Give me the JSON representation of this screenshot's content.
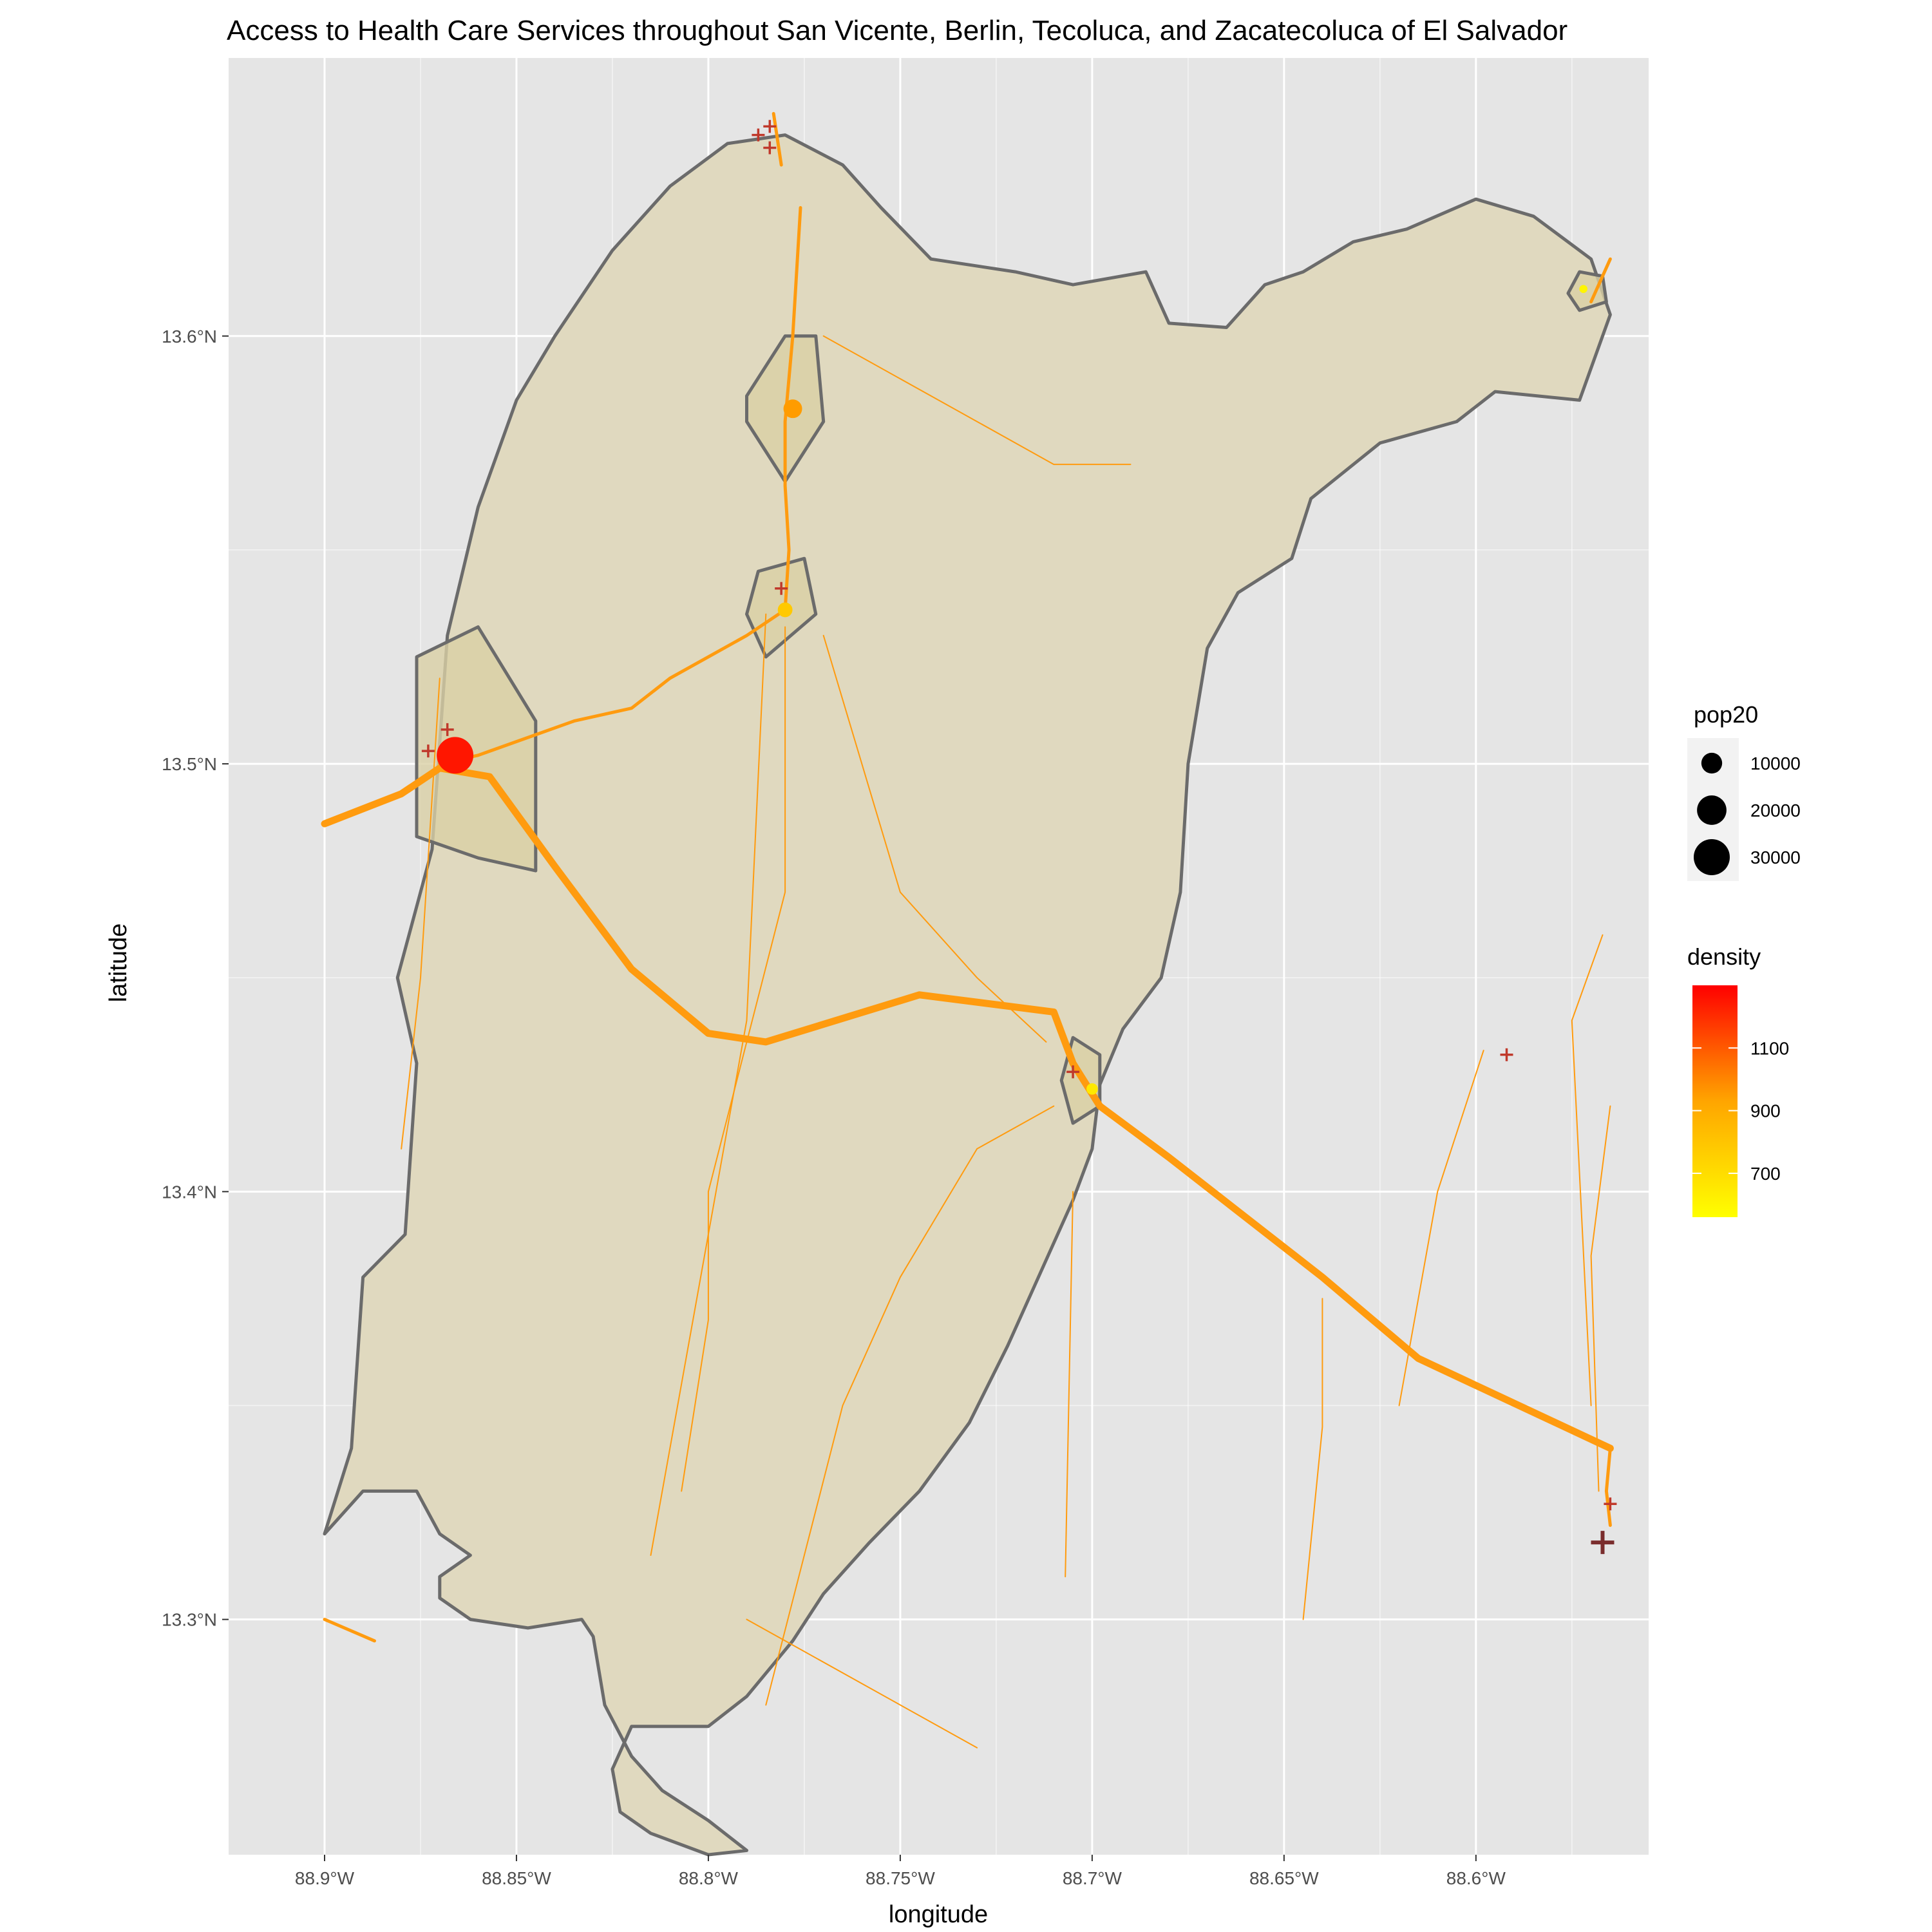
{
  "title": "Access to Health Care Services throughout San Vicente, Berlin, Tecoluca, and Zacatecoluca of El Salvador",
  "x_axis": {
    "title": "longitude",
    "ticks": [
      {
        "value": -88.9,
        "label": "88.9°W"
      },
      {
        "value": -88.85,
        "label": "88.85°W"
      },
      {
        "value": -88.8,
        "label": "88.8°W"
      },
      {
        "value": -88.75,
        "label": "88.75°W"
      },
      {
        "value": -88.7,
        "label": "88.7°W"
      },
      {
        "value": -88.65,
        "label": "88.65°W"
      },
      {
        "value": -88.6,
        "label": "88.6°W"
      }
    ]
  },
  "y_axis": {
    "title": "latitude",
    "ticks": [
      {
        "value": 13.3,
        "label": "13.3°N"
      },
      {
        "value": 13.4,
        "label": "13.4°N"
      },
      {
        "value": 13.5,
        "label": "13.5°N"
      },
      {
        "value": 13.6,
        "label": "13.6°N"
      }
    ]
  },
  "legend_size": {
    "title": "pop20",
    "items": [
      {
        "value": 10000,
        "label": "10000"
      },
      {
        "value": 20000,
        "label": "20000"
      },
      {
        "value": 30000,
        "label": "30000"
      }
    ]
  },
  "legend_color": {
    "title": "density",
    "labels": [
      {
        "value": 1100,
        "label": "1100"
      },
      {
        "value": 900,
        "label": "900"
      },
      {
        "value": 700,
        "label": "700"
      }
    ],
    "low_color": "#ffff00",
    "high_color": "#ff0000"
  },
  "colors": {
    "panel": "#e5e5e5",
    "grid": "#ffffff",
    "region_fill": "#e0d9bf",
    "urban_fill": "#d9cfa5",
    "region_stroke": "#6b6b6b",
    "road": "#ff9b0f",
    "health_facility": "#c0392b"
  },
  "chart_data": {
    "type": "map",
    "xlim": [
      -88.925,
      -88.555
    ],
    "ylim": [
      13.245,
      13.665
    ],
    "grid": true,
    "region_boundary": [
      [
        -88.9,
        13.32
      ],
      [
        -88.893,
        13.34
      ],
      [
        -88.89,
        13.38
      ],
      [
        -88.879,
        13.39
      ],
      [
        -88.876,
        13.43
      ],
      [
        -88.881,
        13.45
      ],
      [
        -88.872,
        13.48
      ],
      [
        -88.868,
        13.53
      ],
      [
        -88.86,
        13.56
      ],
      [
        -88.85,
        13.585
      ],
      [
        -88.84,
        13.6
      ],
      [
        -88.825,
        13.62
      ],
      [
        -88.81,
        13.635
      ],
      [
        -88.795,
        13.645
      ],
      [
        -88.78,
        13.647
      ],
      [
        -88.765,
        13.64
      ],
      [
        -88.755,
        13.63
      ],
      [
        -88.742,
        13.618
      ],
      [
        -88.72,
        13.615
      ],
      [
        -88.705,
        13.612
      ],
      [
        -88.686,
        13.615
      ],
      [
        -88.68,
        13.603
      ],
      [
        -88.665,
        13.602
      ],
      [
        -88.655,
        13.612
      ],
      [
        -88.645,
        13.615
      ],
      [
        -88.632,
        13.622
      ],
      [
        -88.618,
        13.625
      ],
      [
        -88.6,
        13.632
      ],
      [
        -88.585,
        13.628
      ],
      [
        -88.57,
        13.618
      ],
      [
        -88.565,
        13.605
      ],
      [
        -88.573,
        13.585
      ],
      [
        -88.595,
        13.587
      ],
      [
        -88.605,
        13.58
      ],
      [
        -88.625,
        13.575
      ],
      [
        -88.643,
        13.562
      ],
      [
        -88.648,
        13.548
      ],
      [
        -88.662,
        13.54
      ],
      [
        -88.67,
        13.527
      ],
      [
        -88.675,
        13.5
      ],
      [
        -88.677,
        13.47
      ],
      [
        -88.682,
        13.45
      ],
      [
        -88.692,
        13.438
      ],
      [
        -88.698,
        13.425
      ],
      [
        -88.7,
        13.41
      ],
      [
        -88.705,
        13.398
      ],
      [
        -88.715,
        13.378
      ],
      [
        -88.722,
        13.364
      ],
      [
        -88.732,
        13.346
      ],
      [
        -88.745,
        13.33
      ],
      [
        -88.758,
        13.318
      ],
      [
        -88.77,
        13.306
      ],
      [
        -88.778,
        13.295
      ],
      [
        -88.79,
        13.282
      ],
      [
        -88.8,
        13.275
      ],
      [
        -88.82,
        13.275
      ],
      [
        -88.825,
        13.265
      ],
      [
        -88.823,
        13.255
      ],
      [
        -88.815,
        13.25
      ],
      [
        -88.8,
        13.245
      ],
      [
        -88.79,
        13.246
      ],
      [
        -88.8,
        13.253
      ],
      [
        -88.812,
        13.26
      ],
      [
        -88.82,
        13.268
      ],
      [
        -88.827,
        13.28
      ],
      [
        -88.83,
        13.296
      ],
      [
        -88.833,
        13.3
      ],
      [
        -88.847,
        13.298
      ],
      [
        -88.862,
        13.3
      ],
      [
        -88.87,
        13.305
      ],
      [
        -88.87,
        13.31
      ],
      [
        -88.862,
        13.315
      ],
      [
        -88.87,
        13.32
      ],
      [
        -88.876,
        13.33
      ],
      [
        -88.89,
        13.33
      ],
      [
        -88.9,
        13.32
      ]
    ],
    "urban_areas": [
      {
        "name": "",
        "points": [
          [
            -88.876,
            13.525
          ],
          [
            -88.86,
            13.532
          ],
          [
            -88.845,
            13.51
          ],
          [
            -88.845,
            13.475
          ],
          [
            -88.86,
            13.478
          ],
          [
            -88.876,
            13.483
          ]
        ]
      },
      {
        "name": "",
        "points": [
          [
            -88.79,
            13.586
          ],
          [
            -88.78,
            13.6
          ],
          [
            -88.772,
            13.6
          ],
          [
            -88.77,
            13.58
          ],
          [
            -88.78,
            13.566
          ],
          [
            -88.79,
            13.58
          ]
        ]
      },
      {
        "name": "",
        "points": [
          [
            -88.787,
            13.545
          ],
          [
            -88.775,
            13.548
          ],
          [
            -88.772,
            13.535
          ],
          [
            -88.785,
            13.525
          ],
          [
            -88.79,
            13.535
          ]
        ]
      },
      {
        "name": "",
        "points": [
          [
            -88.705,
            13.436
          ],
          [
            -88.698,
            13.432
          ],
          [
            -88.698,
            13.42
          ],
          [
            -88.705,
            13.416
          ],
          [
            -88.708,
            13.426
          ]
        ]
      },
      {
        "name": "",
        "points": [
          [
            -88.573,
            13.615
          ],
          [
            -88.567,
            13.614
          ],
          [
            -88.566,
            13.608
          ],
          [
            -88.573,
            13.606
          ],
          [
            -88.576,
            13.61
          ]
        ]
      }
    ],
    "main_roads": [
      [
        [
          -88.9,
          13.486
        ],
        [
          -88.88,
          13.493
        ],
        [
          -88.87,
          13.499
        ],
        [
          -88.857,
          13.497
        ],
        [
          -88.84,
          13.476
        ],
        [
          -88.82,
          13.452
        ],
        [
          -88.8,
          13.437
        ],
        [
          -88.785,
          13.435
        ],
        [
          -88.745,
          13.446
        ],
        [
          -88.71,
          13.442
        ],
        [
          -88.705,
          13.43
        ],
        [
          -88.698,
          13.42
        ],
        [
          -88.68,
          13.408
        ],
        [
          -88.64,
          13.38
        ],
        [
          -88.615,
          13.361
        ],
        [
          -88.565,
          13.34
        ]
      ]
    ],
    "secondary_roads": [
      [
        [
          -88.87,
          13.5
        ],
        [
          -88.86,
          13.502
        ],
        [
          -88.835,
          13.51
        ],
        [
          -88.82,
          13.513
        ],
        [
          -88.81,
          13.52
        ],
        [
          -88.79,
          13.53
        ],
        [
          -88.78,
          13.536
        ],
        [
          -88.779,
          13.55
        ],
        [
          -88.78,
          13.565
        ],
        [
          -88.78,
          13.58
        ],
        [
          -88.778,
          13.6
        ],
        [
          -88.776,
          13.63
        ]
      ],
      [
        [
          -88.781,
          13.64
        ],
        [
          -88.783,
          13.652
        ]
      ],
      [
        [
          -88.565,
          13.34
        ],
        [
          -88.566,
          13.33
        ],
        [
          -88.565,
          13.322
        ]
      ],
      [
        [
          -88.57,
          13.608
        ],
        [
          -88.565,
          13.618
        ]
      ],
      [
        [
          -88.9,
          13.3
        ],
        [
          -88.887,
          13.295
        ]
      ]
    ],
    "minor_roads": [
      [
        [
          -88.88,
          13.41
        ],
        [
          -88.875,
          13.45
        ],
        [
          -88.87,
          13.52
        ]
      ],
      [
        [
          -88.785,
          13.535
        ],
        [
          -88.79,
          13.44
        ],
        [
          -88.815,
          13.315
        ]
      ],
      [
        [
          -88.78,
          13.532
        ],
        [
          -88.78,
          13.47
        ],
        [
          -88.8,
          13.4
        ],
        [
          -88.8,
          13.37
        ],
        [
          -88.807,
          13.33
        ]
      ],
      [
        [
          -88.77,
          13.53
        ],
        [
          -88.75,
          13.47
        ],
        [
          -88.73,
          13.45
        ],
        [
          -88.712,
          13.435
        ]
      ],
      [
        [
          -88.71,
          13.42
        ],
        [
          -88.73,
          13.41
        ],
        [
          -88.75,
          13.38
        ],
        [
          -88.765,
          13.35
        ],
        [
          -88.785,
          13.28
        ]
      ],
      [
        [
          -88.79,
          13.3
        ],
        [
          -88.73,
          13.27
        ]
      ],
      [
        [
          -88.77,
          13.6
        ],
        [
          -88.73,
          13.58
        ],
        [
          -88.71,
          13.57
        ],
        [
          -88.69,
          13.57
        ]
      ],
      [
        [
          -88.705,
          13.4
        ],
        [
          -88.707,
          13.31
        ]
      ],
      [
        [
          -88.64,
          13.375
        ],
        [
          -88.64,
          13.345
        ],
        [
          -88.645,
          13.3
        ]
      ],
      [
        [
          -88.598,
          13.433
        ],
        [
          -88.61,
          13.4
        ],
        [
          -88.62,
          13.35
        ]
      ],
      [
        [
          -88.567,
          13.46
        ],
        [
          -88.575,
          13.44
        ],
        [
          -88.57,
          13.35
        ]
      ],
      [
        [
          -88.565,
          13.42
        ],
        [
          -88.57,
          13.385
        ],
        [
          -88.568,
          13.33
        ]
      ]
    ],
    "population_points": [
      {
        "lon": -88.866,
        "lat": 13.502,
        "pop20": 31000,
        "density": 1250
      },
      {
        "lon": -88.778,
        "lat": 13.583,
        "pop20": 8000,
        "density": 950
      },
      {
        "lon": -88.78,
        "lat": 13.536,
        "pop20": 5000,
        "density": 780
      },
      {
        "lon": -88.7,
        "lat": 13.424,
        "pop20": 3000,
        "density": 650
      },
      {
        "lon": -88.572,
        "lat": 13.611,
        "pop20": 1500,
        "density": 600
      }
    ],
    "health_facilities": [
      {
        "lon": -88.873,
        "lat": 13.503
      },
      {
        "lon": -88.868,
        "lat": 13.508
      },
      {
        "lon": -88.781,
        "lat": 13.541
      },
      {
        "lon": -88.787,
        "lat": 13.647
      },
      {
        "lon": -88.784,
        "lat": 13.644
      },
      {
        "lon": -88.784,
        "lat": 13.649
      },
      {
        "lon": -88.705,
        "lat": 13.428
      },
      {
        "lon": -88.592,
        "lat": 13.432
      },
      {
        "lon": -88.565,
        "lat": 13.327
      },
      {
        "lon": -88.567,
        "lat": 13.318,
        "major": true
      }
    ]
  }
}
